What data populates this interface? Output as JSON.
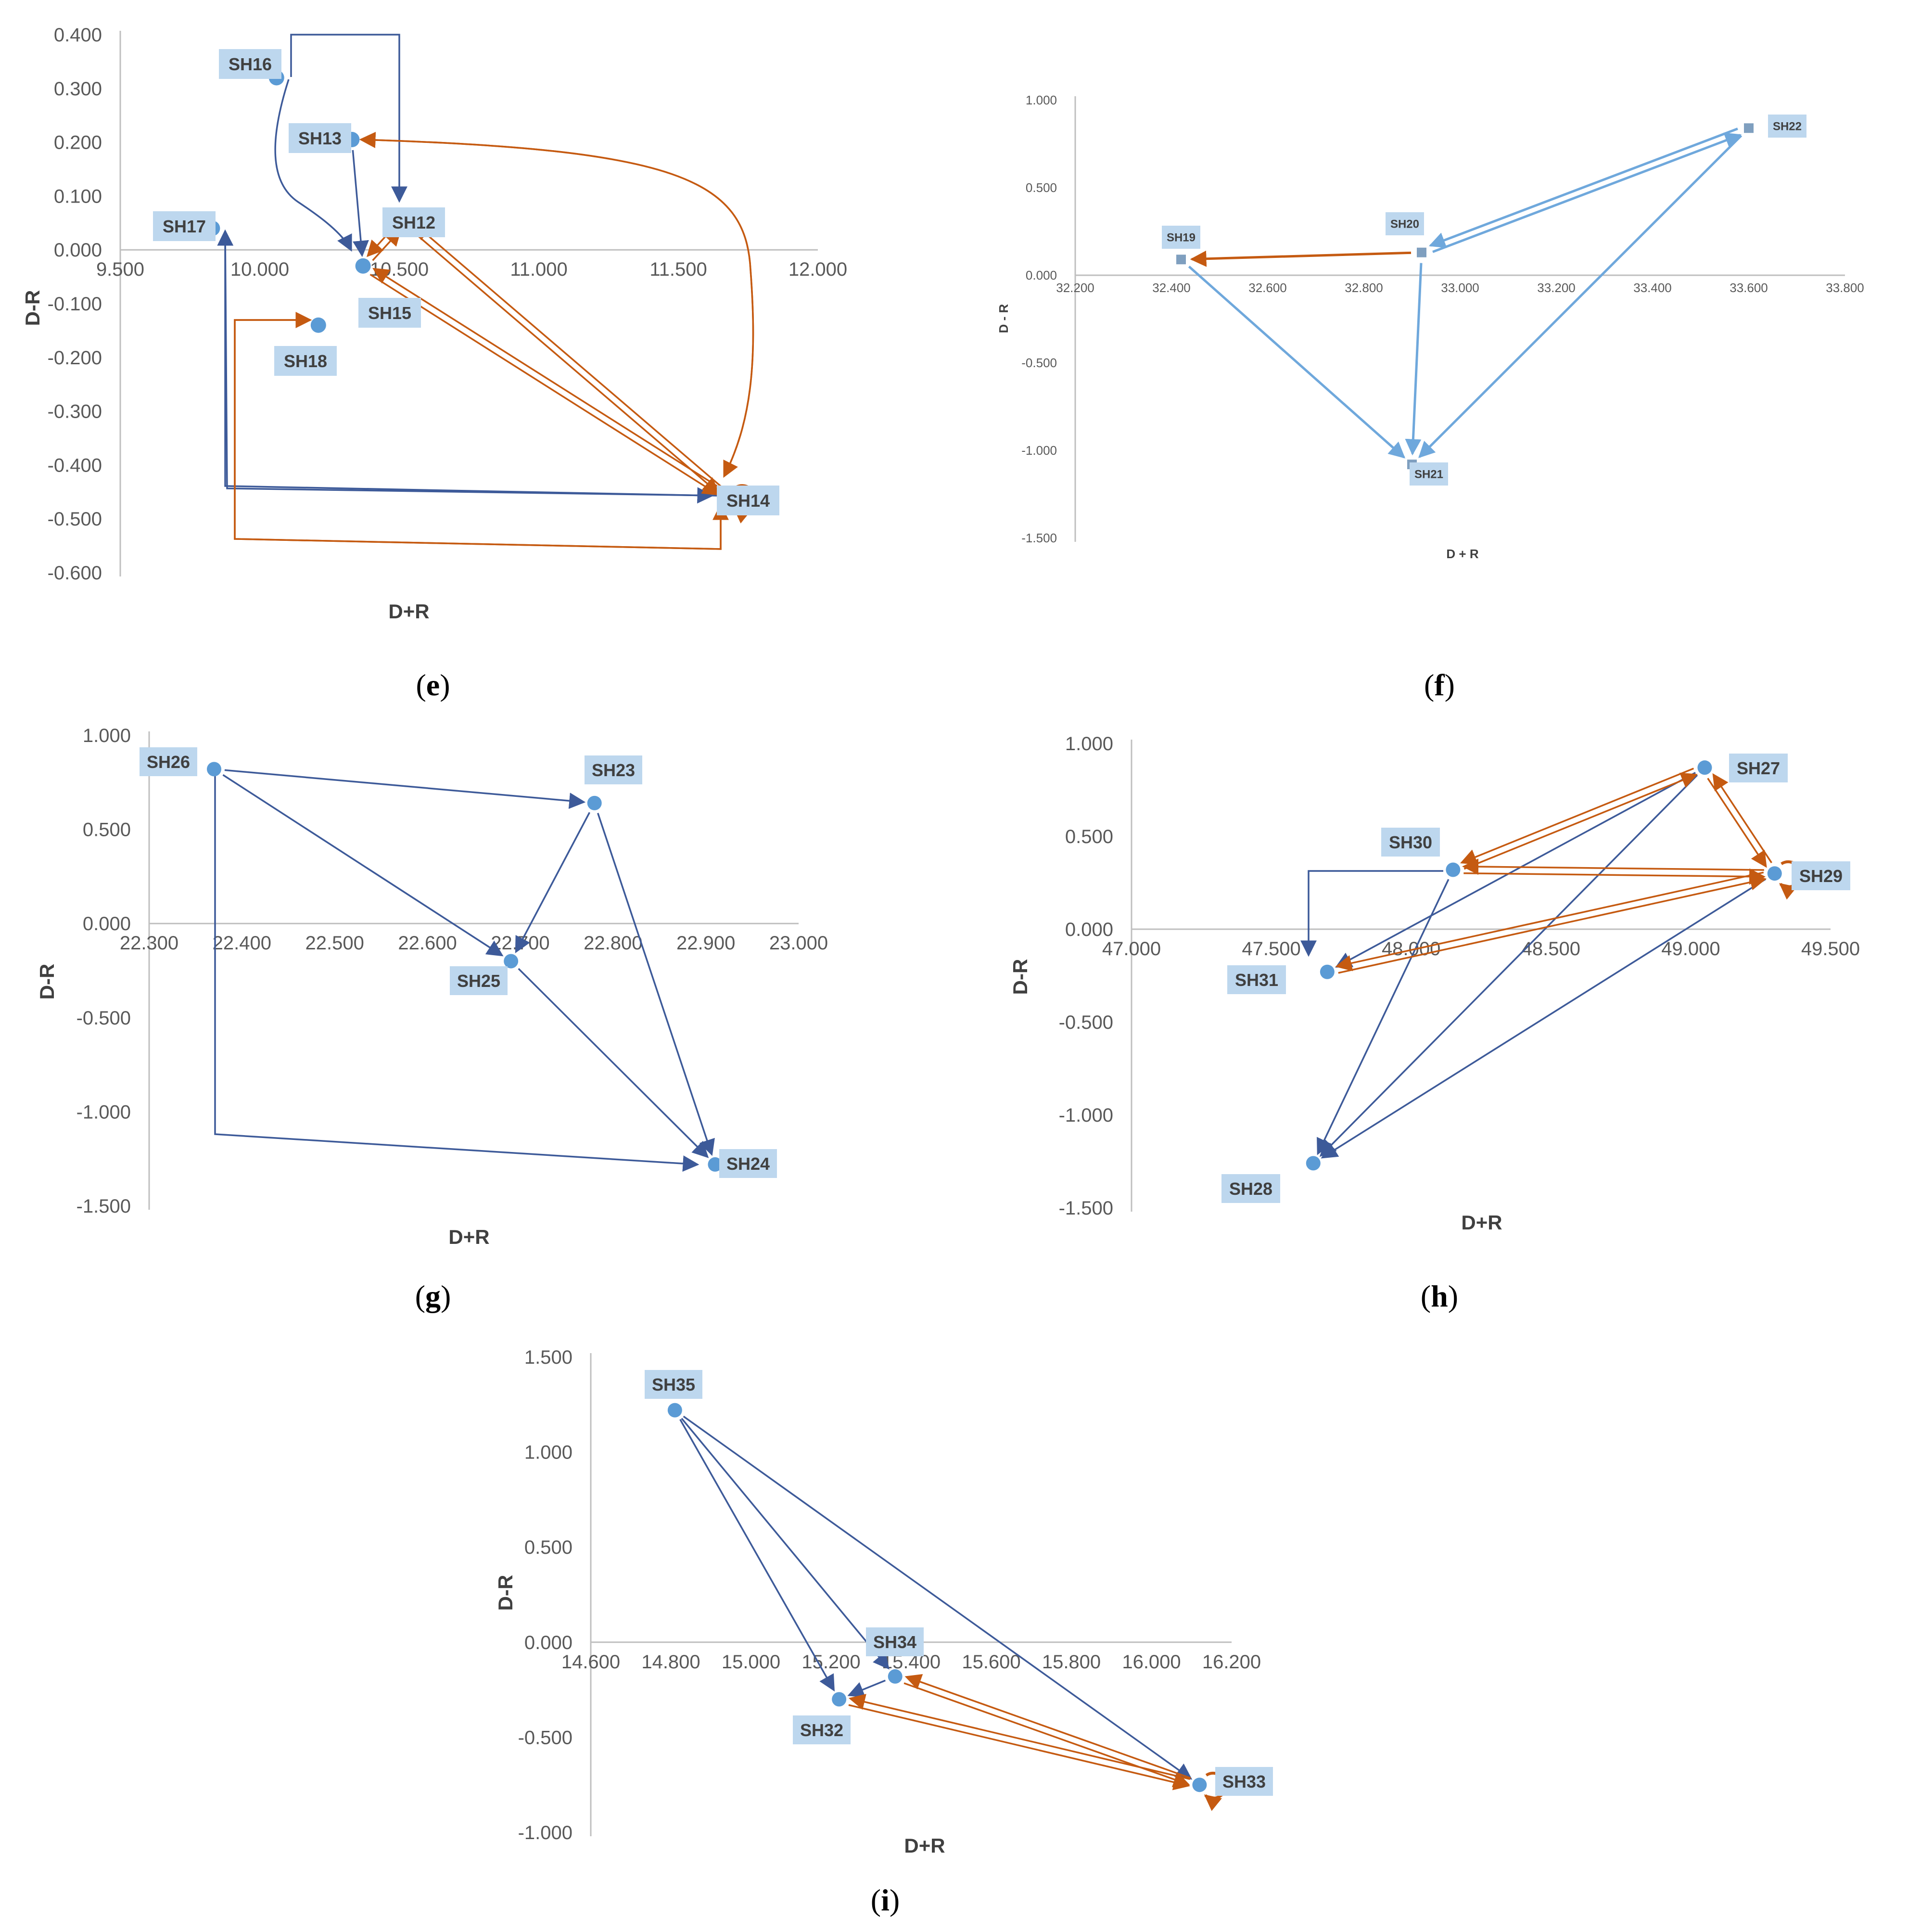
{
  "colors": {
    "blue": "#3d5a99",
    "orange": "#c55a11",
    "marker": "#5b9bd5",
    "label_bg": "#bdd7ee",
    "marker_f": "#7f9fbf",
    "blue_f": "#6fa8dc",
    "axis": "#bfbfbf"
  },
  "chart_data": [
    {
      "id": "e",
      "type": "scatter",
      "caption": "e",
      "xlabel": "D+R",
      "ylabel": "D-R",
      "xlim": [
        9.5,
        12.0
      ],
      "ylim": [
        -0.6,
        0.4
      ],
      "xticks": [
        "9.500",
        "10.000",
        "10.500",
        "11.000",
        "11.500",
        "12.000"
      ],
      "yticks": [
        "0.400",
        "0.300",
        "0.200",
        "0.100",
        "0.000",
        "-0.100",
        "-0.200",
        "-0.300",
        "-0.400",
        "-0.500",
        "-0.600"
      ],
      "points": [
        {
          "name": "SH12",
          "x": 10.52,
          "y": 0.055
        },
        {
          "name": "SH13",
          "x": 10.33,
          "y": 0.205
        },
        {
          "name": "SH14",
          "x": 11.68,
          "y": -0.46
        },
        {
          "name": "SH15",
          "x": 10.37,
          "y": -0.03
        },
        {
          "name": "SH16",
          "x": 10.06,
          "y": 0.32
        },
        {
          "name": "SH17",
          "x": 9.83,
          "y": 0.04
        },
        {
          "name": "SH18",
          "x": 10.21,
          "y": -0.14
        }
      ],
      "relations": [
        {
          "from": "SH16",
          "to": "SH12",
          "color": "blue"
        },
        {
          "from": "SH16",
          "to": "SH15",
          "color": "blue"
        },
        {
          "from": "SH13",
          "to": "SH15",
          "color": "blue"
        },
        {
          "from": "SH17",
          "to": "SH14",
          "color": "blue"
        },
        {
          "from": "SH14",
          "to": "SH17",
          "color": "blue"
        },
        {
          "from": "SH15",
          "to": "SH12",
          "color": "orange"
        },
        {
          "from": "SH12",
          "to": "SH15",
          "color": "orange"
        },
        {
          "from": "SH12",
          "to": "SH14",
          "color": "orange"
        },
        {
          "from": "SH14",
          "to": "SH12",
          "color": "orange"
        },
        {
          "from": "SH15",
          "to": "SH14",
          "color": "orange"
        },
        {
          "from": "SH14",
          "to": "SH15",
          "color": "orange"
        },
        {
          "from": "SH13",
          "to": "SH14",
          "color": "orange"
        },
        {
          "from": "SH14",
          "to": "SH13",
          "color": "orange"
        },
        {
          "from": "SH14",
          "to": "SH18",
          "color": "orange"
        },
        {
          "from": "SH18",
          "to": "SH14",
          "color": "orange"
        },
        {
          "from": "SH14",
          "to": "SH14",
          "color": "orange"
        }
      ]
    },
    {
      "id": "f",
      "type": "scatter",
      "caption": "f",
      "xlabel": "D + R",
      "ylabel": "D - R",
      "xlim": [
        32.2,
        33.8
      ],
      "ylim": [
        -1.5,
        1.0
      ],
      "xticks": [
        "32.200",
        "32.400",
        "32.600",
        "32.800",
        "33.000",
        "33.200",
        "33.400",
        "33.600",
        "33.800"
      ],
      "yticks": [
        "1.000",
        "0.500",
        "0.000",
        "-0.500",
        "-1.000",
        "-1.500"
      ],
      "points": [
        {
          "name": "SH19",
          "x": 32.42,
          "y": 0.09
        },
        {
          "name": "SH20",
          "x": 32.92,
          "y": 0.13
        },
        {
          "name": "SH21",
          "x": 32.9,
          "y": -1.08
        },
        {
          "name": "SH22",
          "x": 33.6,
          "y": 0.84
        }
      ],
      "relations": [
        {
          "from": "SH20",
          "to": "SH22",
          "color": "blue"
        },
        {
          "from": "SH22",
          "to": "SH20",
          "color": "blue"
        },
        {
          "from": "SH19",
          "to": "SH21",
          "color": "blue"
        },
        {
          "from": "SH20",
          "to": "SH21",
          "color": "blue"
        },
        {
          "from": "SH22",
          "to": "SH21",
          "color": "blue"
        },
        {
          "from": "SH20",
          "to": "SH19",
          "color": "orange"
        }
      ]
    },
    {
      "id": "g",
      "type": "scatter",
      "caption": "g",
      "xlabel": "D+R",
      "ylabel": "D-R",
      "xlim": [
        22.3,
        23.0
      ],
      "ylim": [
        -1.5,
        1.0
      ],
      "xticks": [
        "22.300",
        "22.400",
        "22.500",
        "22.600",
        "22.700",
        "22.800",
        "22.900",
        "23.000"
      ],
      "yticks": [
        "1.000",
        "0.500",
        "0.000",
        "-0.500",
        "-1.000",
        "-1.500"
      ],
      "points": [
        {
          "name": "SH23",
          "x": 22.78,
          "y": 0.64
        },
        {
          "name": "SH24",
          "x": 22.91,
          "y": -1.28
        },
        {
          "name": "SH25",
          "x": 22.69,
          "y": -0.2
        },
        {
          "name": "SH26",
          "x": 22.37,
          "y": 0.82
        }
      ],
      "relations": [
        {
          "from": "SH26",
          "to": "SH23",
          "color": "blue"
        },
        {
          "from": "SH26",
          "to": "SH25",
          "color": "blue"
        },
        {
          "from": "SH26",
          "to": "SH24",
          "color": "blue"
        },
        {
          "from": "SH23",
          "to": "SH25",
          "color": "blue"
        },
        {
          "from": "SH23",
          "to": "SH24",
          "color": "blue"
        },
        {
          "from": "SH25",
          "to": "SH24",
          "color": "blue"
        }
      ]
    },
    {
      "id": "h",
      "type": "scatter",
      "caption": "h",
      "xlabel": "D+R",
      "ylabel": "D-R",
      "xlim": [
        47.0,
        49.5
      ],
      "ylim": [
        -1.5,
        1.0
      ],
      "xticks": [
        "47.000",
        "47.500",
        "48.000",
        "48.500",
        "49.000",
        "49.500"
      ],
      "yticks": [
        "1.000",
        "0.500",
        "0.000",
        "-0.500",
        "-1.000",
        "-1.500"
      ],
      "points": [
        {
          "name": "SH27",
          "x": 49.05,
          "y": 0.87
        },
        {
          "name": "SH28",
          "x": 47.65,
          "y": -1.26
        },
        {
          "name": "SH29",
          "x": 49.3,
          "y": 0.3
        },
        {
          "name": "SH30",
          "x": 48.15,
          "y": 0.32
        },
        {
          "name": "SH31",
          "x": 47.7,
          "y": -0.23
        }
      ],
      "relations": [
        {
          "from": "SH27",
          "to": "SH31",
          "color": "blue"
        },
        {
          "from": "SH30",
          "to": "SH31",
          "color": "blue"
        },
        {
          "from": "SH27",
          "to": "SH28",
          "color": "blue"
        },
        {
          "from": "SH29",
          "to": "SH28",
          "color": "blue"
        },
        {
          "from": "SH30",
          "to": "SH28",
          "color": "blue"
        },
        {
          "from": "SH30",
          "to": "SH27",
          "color": "orange"
        },
        {
          "from": "SH27",
          "to": "SH30",
          "color": "orange"
        },
        {
          "from": "SH27",
          "to": "SH29",
          "color": "orange"
        },
        {
          "from": "SH29",
          "to": "SH27",
          "color": "orange"
        },
        {
          "from": "SH29",
          "to": "SH30",
          "color": "orange"
        },
        {
          "from": "SH30",
          "to": "SH29",
          "color": "orange"
        },
        {
          "from": "SH29",
          "to": "SH31",
          "color": "orange"
        },
        {
          "from": "SH31",
          "to": "SH29",
          "color": "orange"
        },
        {
          "from": "SH29",
          "to": "SH29",
          "color": "orange"
        }
      ]
    },
    {
      "id": "i",
      "type": "scatter",
      "caption": "i",
      "xlabel": "D+R",
      "ylabel": "D-R",
      "xlim": [
        14.6,
        16.2
      ],
      "ylim": [
        -1.0,
        1.5
      ],
      "xticks": [
        "14.600",
        "14.800",
        "15.000",
        "15.200",
        "15.400",
        "15.600",
        "15.800",
        "16.000",
        "16.200"
      ],
      "yticks": [
        "1.500",
        "1.000",
        "0.500",
        "0.000",
        "-0.500",
        "-1.000"
      ],
      "points": [
        {
          "name": "SH32",
          "x": 15.22,
          "y": -0.3
        },
        {
          "name": "SH33",
          "x": 16.12,
          "y": -0.75
        },
        {
          "name": "SH34",
          "x": 15.36,
          "y": -0.18
        },
        {
          "name": "SH35",
          "x": 14.81,
          "y": 1.22
        }
      ],
      "relations": [
        {
          "from": "SH35",
          "to": "SH32",
          "color": "blue"
        },
        {
          "from": "SH35",
          "to": "SH34",
          "color": "blue"
        },
        {
          "from": "SH35",
          "to": "SH33",
          "color": "blue"
        },
        {
          "from": "SH34",
          "to": "SH32",
          "color": "blue"
        },
        {
          "from": "SH33",
          "to": "SH32",
          "color": "orange"
        },
        {
          "from": "SH32",
          "to": "SH33",
          "color": "orange"
        },
        {
          "from": "SH33",
          "to": "SH34",
          "color": "orange"
        },
        {
          "from": "SH34",
          "to": "SH33",
          "color": "orange"
        },
        {
          "from": "SH33",
          "to": "SH33",
          "color": "orange"
        }
      ]
    }
  ]
}
